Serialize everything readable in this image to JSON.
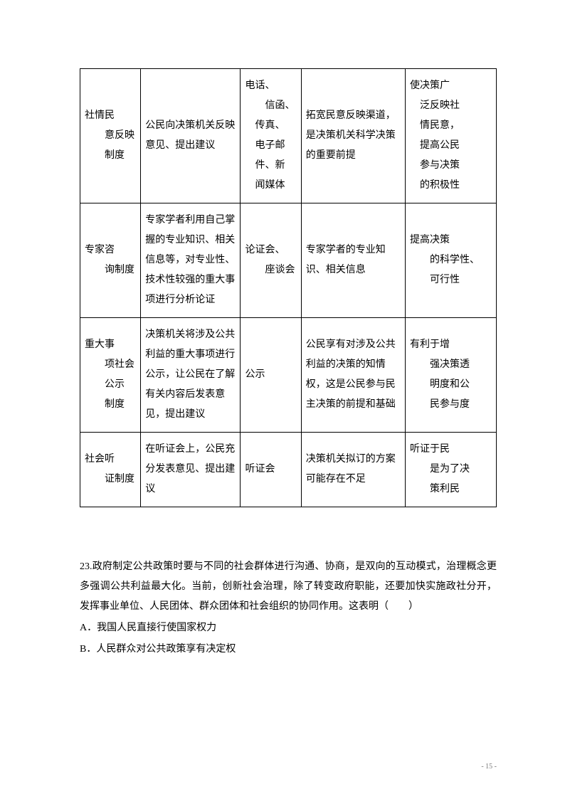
{
  "table": {
    "rows": [
      {
        "c1": "社情民\n　　意反映\n　　制度",
        "c2": "公民向决策机关反映意见、提出建议",
        "c3": "电话、\n　　信函、\n　传真、\n　电子邮\n　件、新\n　闻媒体",
        "c4": "拓宽民意反映渠道，是决策机关科学决策的重要前提",
        "c5": "使决策广\n　泛反映社\n　情民意，\n　提高公民\n　参与决策\n　的积极性"
      },
      {
        "c1": "专家咨\n　　询制度",
        "c2": "专家学者利用自己掌握的专业知识、相关信息等，对专业性、技术性较强的重大事项进行分析论证",
        "c3": "论证会、\n　　座谈会",
        "c4": "专家学者的专业知识、相关信息",
        "c5": "提高决策\n　　的科学性、\n　　可行性"
      },
      {
        "c1": "重大事\n　　项社会\n　　公示\n　　制度",
        "c2": "决策机关将涉及公共利益的重大事项进行公示，让公民在了解有关内容后发表意见，提出建议",
        "c3": "公示",
        "c4": "公民享有对涉及公共利益的决策的知情权，这是公民参与民主决策的前提和基础",
        "c5": "有利于增\n　　强决策透\n　　明度和公\n　　民参与度"
      },
      {
        "c1": "社会听\n　　证制度",
        "c2": "在听证会上，公民充分发表意见、提出建议",
        "c3": "听证会",
        "c4": "决策机关拟订的方案可能存在不足",
        "c5": "听证于民\n　　是为了决\n　　策利民"
      }
    ]
  },
  "question": {
    "number": "23.",
    "text": "政府制定公共政策时要与不同的社会群体进行沟通、协商，是双向的互动模式，治理概念更多强调公共利益最大化。当前，创新社会治理，除了转变政府职能，还要加快实施政社分开，发挥事业单位、人民团体、群众团体和社会组织的协同作用。这表明（　　）",
    "optA": "A．我国人民直接行使国家权力",
    "optB": "B．人民群众对公共政策享有决定权"
  },
  "pageNumber": "- 15 -"
}
